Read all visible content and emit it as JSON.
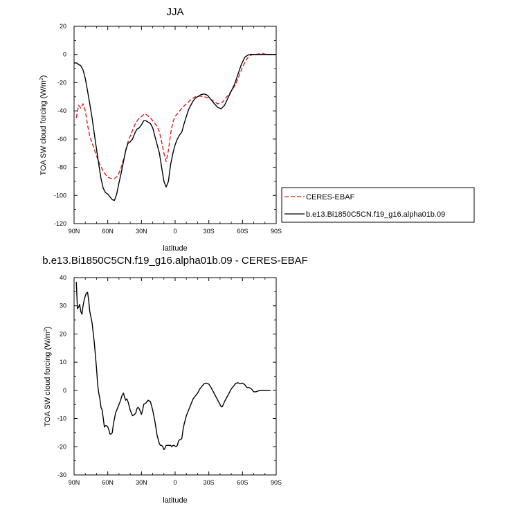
{
  "chart_data": [
    {
      "type": "line",
      "title": "JJA",
      "xlabel": "latitude",
      "ylabel_main": "TOA SW cloud forcing (W/m",
      "ylabel_sup": "2",
      "ylabel_close": ")",
      "xlim": [
        90,
        -90
      ],
      "ylim": [
        -120,
        20
      ],
      "x_ticks": [
        90,
        60,
        30,
        0,
        -30,
        -60,
        -90
      ],
      "x_tick_labels": [
        "90N",
        "60N",
        "30N",
        "0",
        "30S",
        "60S",
        "90S"
      ],
      "y_ticks": [
        20,
        0,
        -20,
        -40,
        -60,
        -80,
        -100,
        -120
      ],
      "y_tick_labels": [
        "20",
        "0",
        "-20",
        "-40",
        "-60",
        "-80",
        "-100",
        "-120"
      ],
      "legend_position": "right",
      "series": [
        {
          "name": "CERES-EBAF",
          "color": "#e41a1c",
          "dash": "dashed",
          "points": [
            [
              88,
              -45
            ],
            [
              86,
              -36
            ],
            [
              84,
              -38
            ],
            [
              82,
              -35
            ],
            [
              80,
              -40
            ],
            [
              78,
              -50
            ],
            [
              76,
              -58
            ],
            [
              73,
              -65
            ],
            [
              70,
              -72
            ],
            [
              67,
              -78
            ],
            [
              64,
              -83
            ],
            [
              62,
              -85
            ],
            [
              60,
              -87
            ],
            [
              57,
              -88
            ],
            [
              54,
              -88
            ],
            [
              51,
              -86
            ],
            [
              48,
              -80
            ],
            [
              45,
              -72
            ],
            [
              42,
              -62
            ],
            [
              39,
              -56
            ],
            [
              36,
              -50
            ],
            [
              33,
              -46
            ],
            [
              30,
              -44
            ],
            [
              27,
              -42
            ],
            [
              25,
              -43
            ],
            [
              22,
              -45
            ],
            [
              19,
              -48
            ],
            [
              16,
              -51
            ],
            [
              14,
              -55
            ],
            [
              12,
              -62
            ],
            [
              10,
              -70
            ],
            [
              8,
              -76
            ],
            [
              6,
              -68
            ],
            [
              4,
              -56
            ],
            [
              2,
              -48
            ],
            [
              0,
              -44
            ],
            [
              -3,
              -41
            ],
            [
              -6,
              -38
            ],
            [
              -10,
              -35
            ],
            [
              -14,
              -32
            ],
            [
              -18,
              -30
            ],
            [
              -22,
              -29.5
            ],
            [
              -26,
              -30
            ],
            [
              -30,
              -31
            ],
            [
              -34,
              -33
            ],
            [
              -38,
              -35
            ],
            [
              -42,
              -34
            ],
            [
              -46,
              -30
            ],
            [
              -50,
              -26
            ],
            [
              -54,
              -21
            ],
            [
              -57,
              -15
            ],
            [
              -60,
              -9
            ],
            [
              -63,
              -4
            ],
            [
              -66,
              -1
            ],
            [
              -69,
              0
            ],
            [
              -72,
              0
            ],
            [
              -75,
              0.5
            ],
            [
              -78,
              0.8
            ],
            [
              -81,
              0
            ],
            [
              -85,
              0
            ],
            [
              -88,
              0
            ],
            [
              -90,
              0
            ]
          ]
        },
        {
          "name": "b.e13.Bi1850C5CN.f19_g16.alpha01b.09",
          "color": "#000000",
          "dash": "solid",
          "points": [
            [
              90,
              -6
            ],
            [
              88,
              -6
            ],
            [
              86,
              -7
            ],
            [
              84,
              -8
            ],
            [
              82,
              -11
            ],
            [
              80,
              -17
            ],
            [
              78,
              -26
            ],
            [
              76,
              -35
            ],
            [
              74,
              -45
            ],
            [
              72,
              -56
            ],
            [
              70,
              -67
            ],
            [
              68,
              -78
            ],
            [
              66,
              -88
            ],
            [
              64,
              -95
            ],
            [
              62,
              -98
            ],
            [
              60,
              -99
            ],
            [
              58,
              -101
            ],
            [
              56,
              -103
            ],
            [
              54,
              -103.5
            ],
            [
              52,
              -99
            ],
            [
              50,
              -91
            ],
            [
              48,
              -84
            ],
            [
              46,
              -76
            ],
            [
              44,
              -68
            ],
            [
              42,
              -63
            ],
            [
              40,
              -62
            ],
            [
              38,
              -60
            ],
            [
              36,
              -56
            ],
            [
              34,
              -53
            ],
            [
              32,
              -52
            ],
            [
              30,
              -50
            ],
            [
              28,
              -47
            ],
            [
              26,
              -47
            ],
            [
              24,
              -48
            ],
            [
              22,
              -49
            ],
            [
              20,
              -52
            ],
            [
              18,
              -58
            ],
            [
              16,
              -64
            ],
            [
              14,
              -70
            ],
            [
              12,
              -80
            ],
            [
              10,
              -90
            ],
            [
              8,
              -94
            ],
            [
              6,
              -90
            ],
            [
              4,
              -78
            ],
            [
              2,
              -70
            ],
            [
              0,
              -64
            ],
            [
              -2,
              -60
            ],
            [
              -4,
              -57
            ],
            [
              -6,
              -55
            ],
            [
              -8,
              -49
            ],
            [
              -10,
              -44
            ],
            [
              -12,
              -39
            ],
            [
              -14,
              -36
            ],
            [
              -16,
              -33
            ],
            [
              -18,
              -31
            ],
            [
              -20,
              -30
            ],
            [
              -23,
              -28.5
            ],
            [
              -26,
              -28
            ],
            [
              -29,
              -29
            ],
            [
              -32,
              -32
            ],
            [
              -35,
              -35
            ],
            [
              -38,
              -37.5
            ],
            [
              -41,
              -38.5
            ],
            [
              -44,
              -36
            ],
            [
              -47,
              -31
            ],
            [
              -50,
              -26
            ],
            [
              -53,
              -21
            ],
            [
              -56,
              -14
            ],
            [
              -59,
              -7
            ],
            [
              -62,
              -2
            ],
            [
              -65,
              -0.3
            ],
            [
              -68,
              0
            ],
            [
              -72,
              0
            ],
            [
              -76,
              0
            ],
            [
              -80,
              0
            ],
            [
              -85,
              0
            ],
            [
              -90,
              0
            ]
          ]
        }
      ]
    },
    {
      "type": "line",
      "title": "b.e13.Bi1850C5CN.f19_g16.alpha01b.09 - CERES-EBAF",
      "xlabel": "latitude",
      "ylabel_main": "TOA SW cloud forcing (W/m",
      "ylabel_sup": "2",
      "ylabel_close": ")",
      "xlim": [
        90,
        -90
      ],
      "ylim": [
        -30,
        40
      ],
      "x_ticks": [
        90,
        60,
        30,
        0,
        -30,
        -60,
        -90
      ],
      "x_tick_labels": [
        "90N",
        "60N",
        "30N",
        "0",
        "30S",
        "60S",
        "90S"
      ],
      "y_ticks": [
        40,
        30,
        20,
        10,
        0,
        -10,
        -20,
        -30
      ],
      "y_tick_labels": [
        "40",
        "30",
        "20",
        "10",
        "0",
        "-10",
        "-20",
        "-30"
      ],
      "series": [
        {
          "color": "#000000",
          "dash": "solid",
          "points": [
            [
              88,
              38.5
            ],
            [
              87,
              29
            ],
            [
              86,
              29.5
            ],
            [
              85,
              30.5
            ],
            [
              84,
              28
            ],
            [
              83,
              27
            ],
            [
              82,
              30
            ],
            [
              81,
              32
            ],
            [
              80,
              33.5
            ],
            [
              79,
              34.5
            ],
            [
              78,
              34.8
            ],
            [
              77,
              32
            ],
            [
              76,
              28
            ],
            [
              74,
              24
            ],
            [
              72,
              17
            ],
            [
              70,
              8
            ],
            [
              69,
              2
            ],
            [
              68,
              -1
            ],
            [
              67,
              -3
            ],
            [
              66,
              -6
            ],
            [
              65,
              -7
            ],
            [
              64,
              -10
            ],
            [
              63,
              -13
            ],
            [
              62,
              -12.5
            ],
            [
              61,
              -12.5
            ],
            [
              60,
              -13
            ],
            [
              59,
              -14
            ],
            [
              58,
              -15.5
            ],
            [
              57,
              -15.5
            ],
            [
              56,
              -15
            ],
            [
              55,
              -12
            ],
            [
              53,
              -8
            ],
            [
              51,
              -6
            ],
            [
              49,
              -4
            ],
            [
              47,
              -1.5
            ],
            [
              46,
              -1
            ],
            [
              45,
              -2.5
            ],
            [
              44,
              -3.5
            ],
            [
              43,
              -3
            ],
            [
              42,
              -4
            ],
            [
              40,
              -7
            ],
            [
              38,
              -9
            ],
            [
              36,
              -8.5
            ],
            [
              35,
              -8
            ],
            [
              34,
              -6.5
            ],
            [
              33,
              -6
            ],
            [
              32,
              -6.5
            ],
            [
              31,
              -7.5
            ],
            [
              30,
              -8.5
            ],
            [
              29,
              -7
            ],
            [
              28,
              -5
            ],
            [
              26,
              -4.5
            ],
            [
              24,
              -3.5
            ],
            [
              22,
              -4
            ],
            [
              20,
              -7
            ],
            [
              18,
              -11
            ],
            [
              16,
              -16
            ],
            [
              14,
              -19
            ],
            [
              13,
              -19.5
            ],
            [
              12,
              -19.5
            ],
            [
              11,
              -20
            ],
            [
              10,
              -21
            ],
            [
              9,
              -20.5
            ],
            [
              8,
              -19.5
            ],
            [
              7,
              -19.5
            ],
            [
              6,
              -19.5
            ],
            [
              5,
              -19.5
            ],
            [
              4,
              -19.5
            ],
            [
              3,
              -20
            ],
            [
              2,
              -19.5
            ],
            [
              1,
              -19.5
            ],
            [
              0,
              -19.8
            ],
            [
              -1,
              -20
            ],
            [
              -2,
              -19.5
            ],
            [
              -3,
              -18
            ],
            [
              -4,
              -17.5
            ],
            [
              -5,
              -17.5
            ],
            [
              -6,
              -17
            ],
            [
              -7,
              -14
            ],
            [
              -8,
              -12
            ],
            [
              -10,
              -9
            ],
            [
              -12,
              -7
            ],
            [
              -14,
              -5
            ],
            [
              -16,
              -3
            ],
            [
              -18,
              -2
            ],
            [
              -20,
              -1
            ],
            [
              -22,
              0.5
            ],
            [
              -24,
              1.5
            ],
            [
              -26,
              2.4
            ],
            [
              -28,
              2.6
            ],
            [
              -30,
              2.2
            ],
            [
              -32,
              1
            ],
            [
              -34,
              -0.5
            ],
            [
              -36,
              -2
            ],
            [
              -38,
              -3.5
            ],
            [
              -40,
              -5
            ],
            [
              -41,
              -5.8
            ],
            [
              -42,
              -5.8
            ],
            [
              -44,
              -4
            ],
            [
              -46,
              -2.5
            ],
            [
              -48,
              -1
            ],
            [
              -50,
              0.5
            ],
            [
              -52,
              1.5
            ],
            [
              -54,
              2.5
            ],
            [
              -56,
              2.7
            ],
            [
              -58,
              2.4
            ],
            [
              -60,
              2.6
            ],
            [
              -62,
              2
            ],
            [
              -64,
              1
            ],
            [
              -66,
              1
            ],
            [
              -68,
              0.5
            ],
            [
              -70,
              -0.5
            ],
            [
              -72,
              -0.5
            ],
            [
              -74,
              -0.2
            ],
            [
              -76,
              0
            ],
            [
              -78,
              -0.1
            ],
            [
              -80,
              0
            ],
            [
              -82,
              0
            ],
            [
              -84,
              0
            ],
            [
              -85,
              0
            ]
          ]
        }
      ]
    }
  ]
}
